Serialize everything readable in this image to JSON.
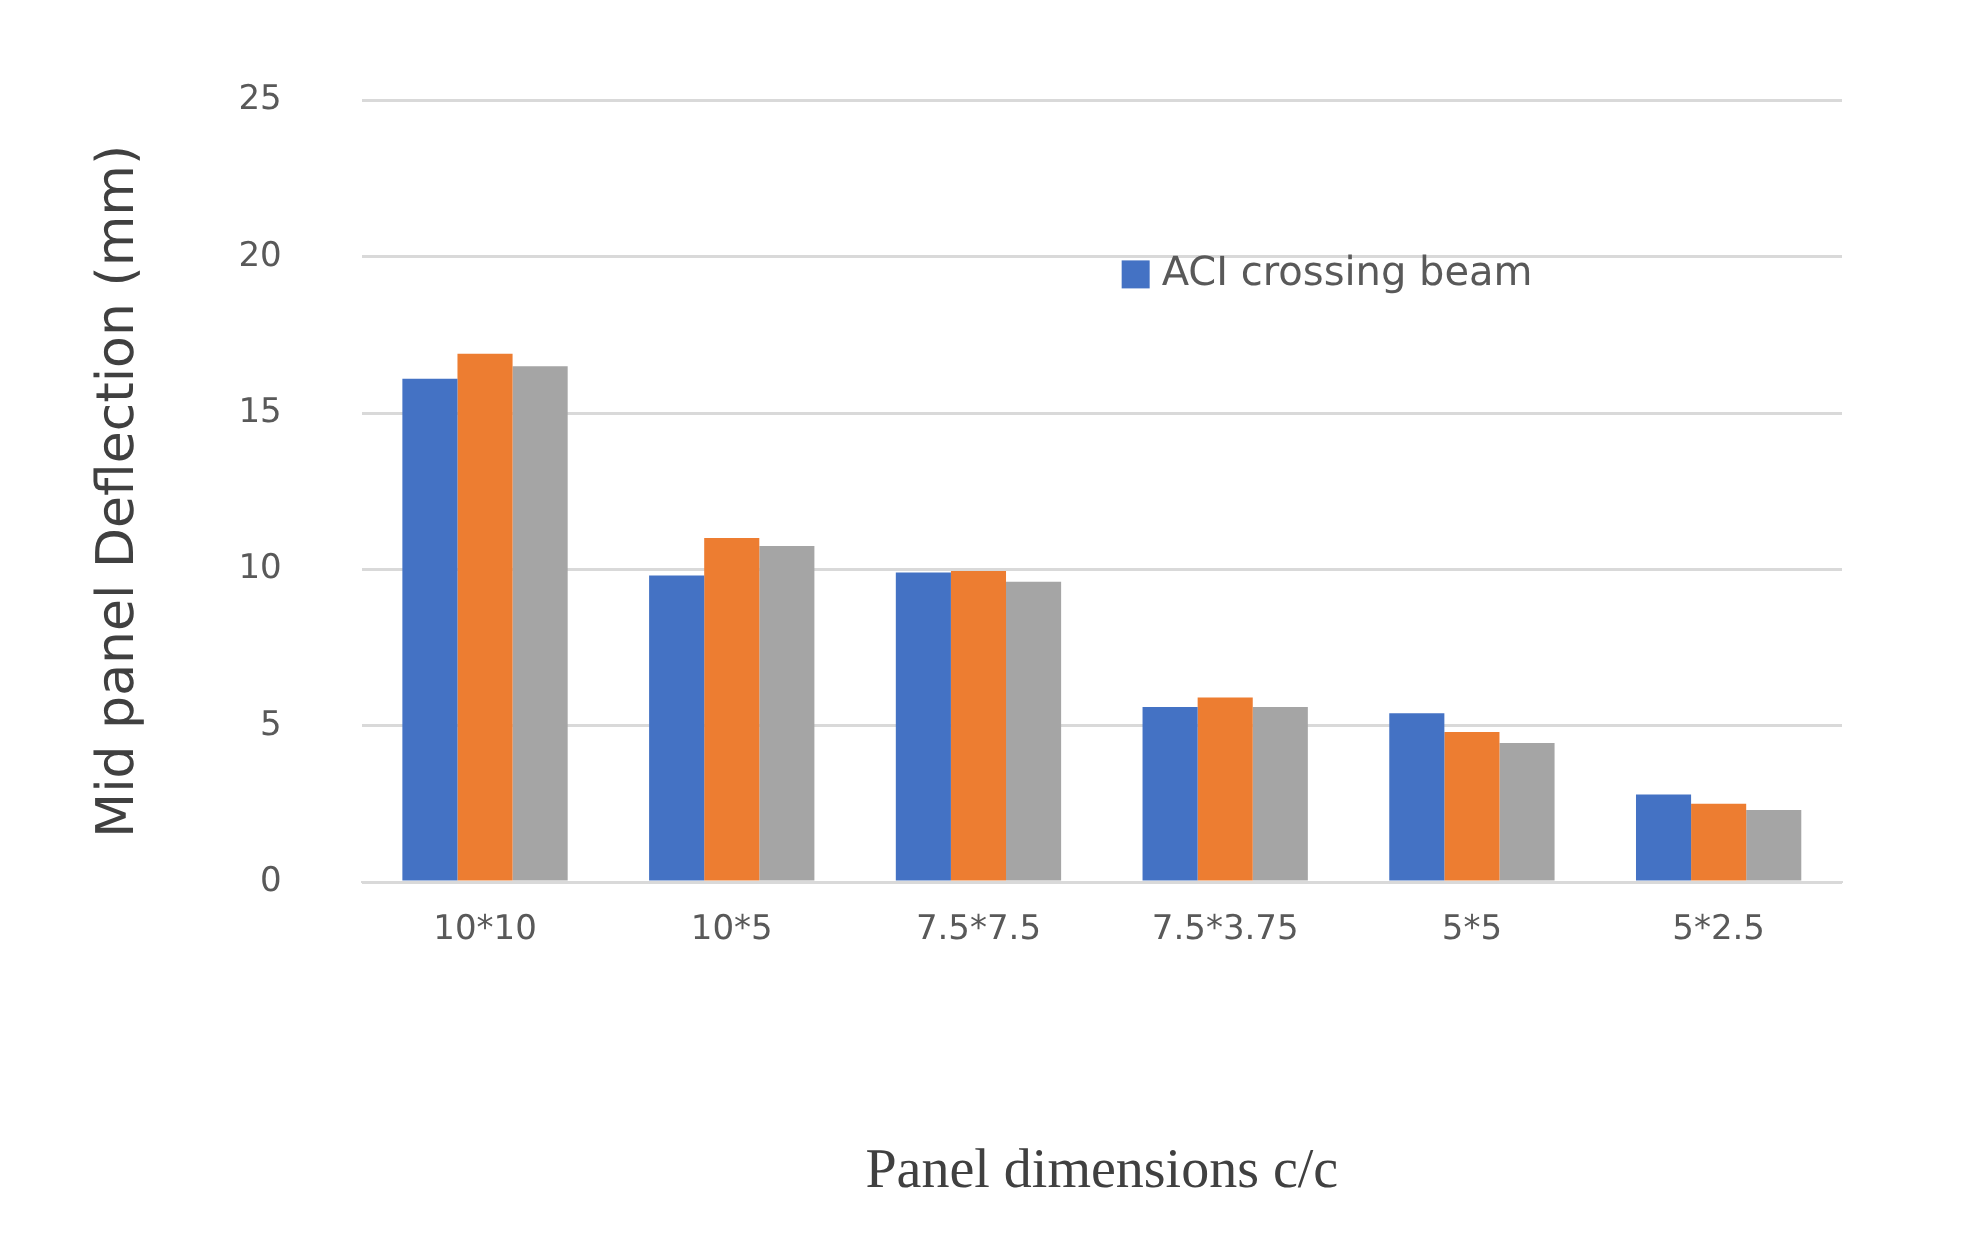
{
  "chart_data": {
    "type": "bar",
    "xlabel": "Panel dimensions c/c",
    "ylabel": "Mid panel Deflection (mm)",
    "categories": [
      "10*10",
      "10*5",
      "7.5*7.5",
      "7.5*3.75",
      "5*5",
      "5*2.5"
    ],
    "series": [
      {
        "name": "ACI crossing beam",
        "color": "#4472c4",
        "values": [
          16.1,
          9.8,
          9.9,
          5.6,
          5.4,
          2.8
        ]
      },
      {
        "color": "#ed7d31",
        "values": [
          16.9,
          11.0,
          9.95,
          5.9,
          4.8,
          2.5
        ]
      },
      {
        "color": "#a5a5a5",
        "values": [
          16.5,
          10.75,
          9.6,
          5.6,
          4.45,
          2.3
        ]
      }
    ],
    "ylim": [
      0,
      25
    ],
    "yticks": [
      0,
      5,
      10,
      15,
      20,
      25
    ],
    "grid": "y",
    "legend": "top right"
  }
}
